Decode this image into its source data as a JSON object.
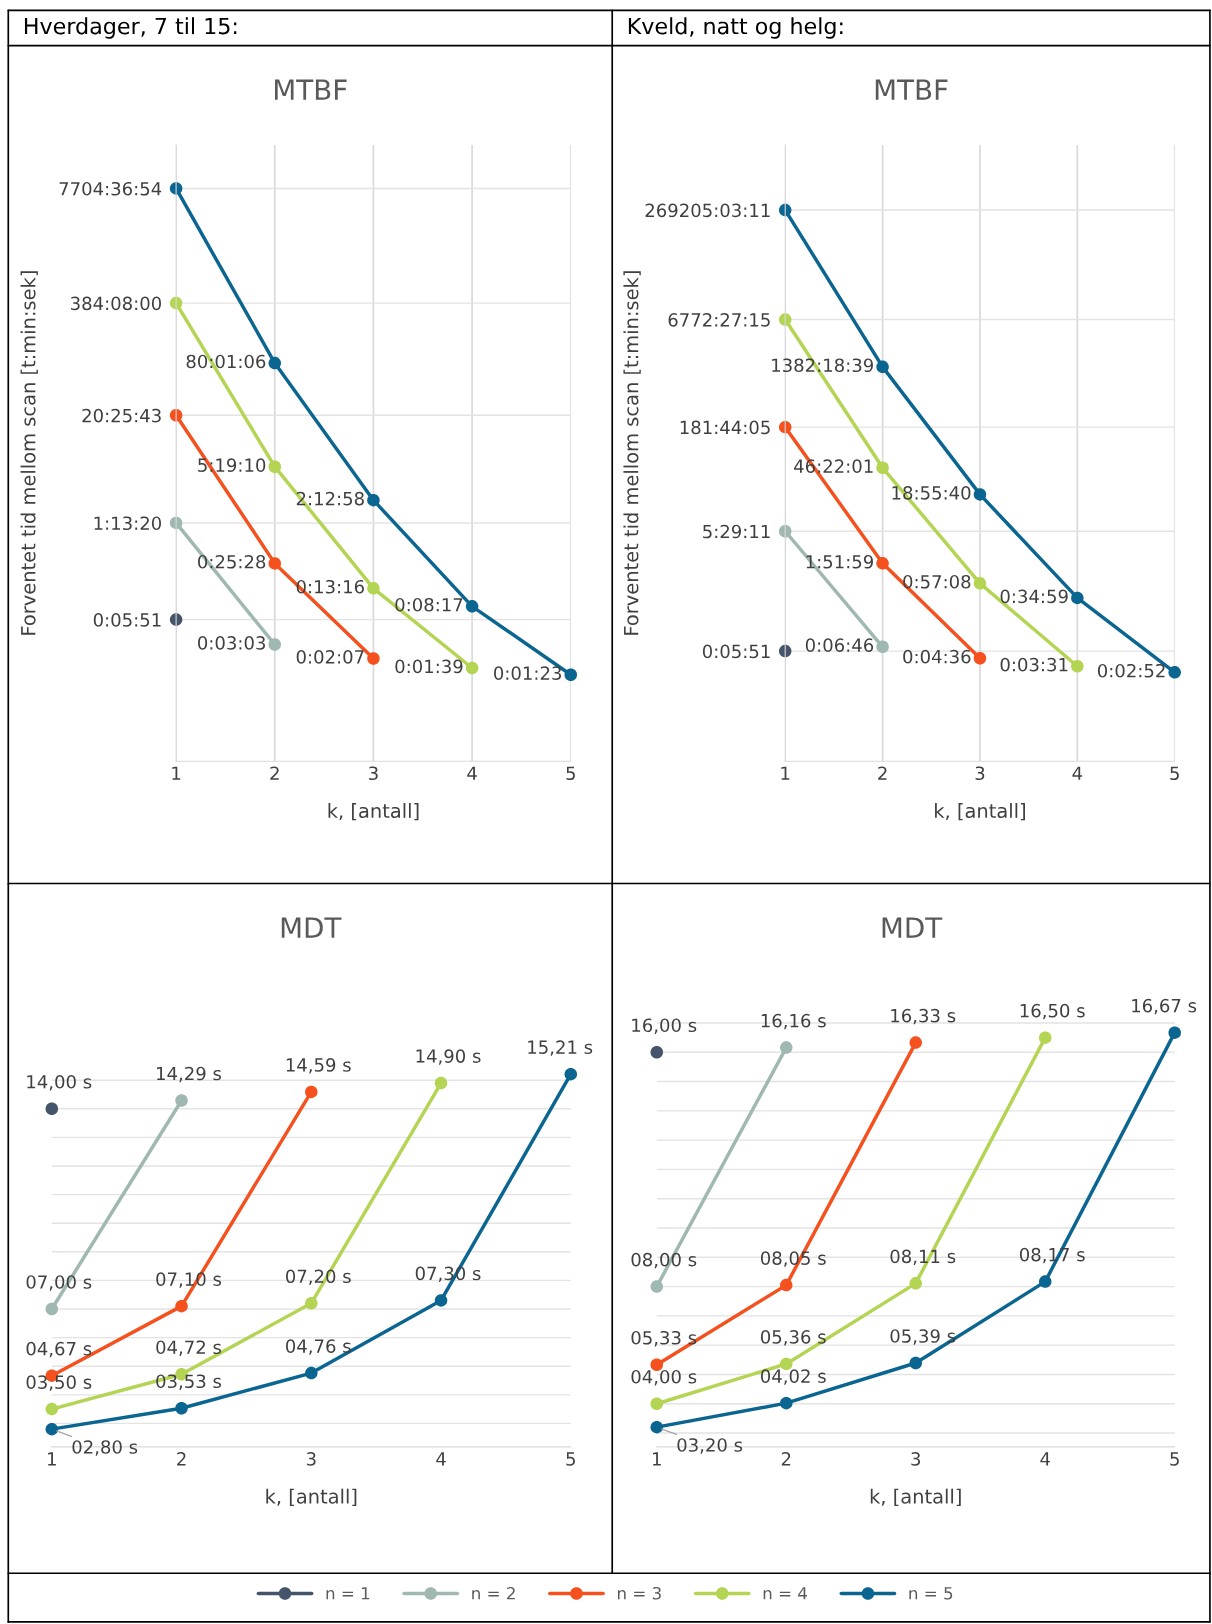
{
  "chart_data": [
    {
      "type": "line",
      "title": "MTBF",
      "xlabel": "k, [antall]",
      "ylabel": "Forventet tid mellom scan [t:min:sek]",
      "log": true,
      "xlim": [
        1,
        5
      ],
      "xticks": [
        1,
        2,
        3,
        4,
        5
      ],
      "ylim": [
        0.0024,
        24000
      ],
      "yticks": [
        {
          "value": 0.0975,
          "label": "0:05:51"
        },
        {
          "value": 1.222222,
          "label": "1:13:20"
        },
        {
          "value": 20.428611,
          "label": "20:25:43"
        },
        {
          "value": 384.133333,
          "label": "384:08:00"
        },
        {
          "value": 7704.615,
          "label": "7704:36:54"
        }
      ],
      "grid": true,
      "legend": "bottom",
      "marker": "circle",
      "annotations": [
        "Hverdager, 7 til 15:"
      ],
      "series": [
        {
          "name": "n = 1",
          "color": "#44546a",
          "x": [
            1
          ],
          "values": [
            0.0975
          ],
          "value_labels": [
            null
          ]
        },
        {
          "name": "n = 2",
          "color": "#a0b8b2",
          "x": [
            1,
            2
          ],
          "values": [
            1.222222,
            0.050833
          ],
          "value_labels": [
            null,
            "0:03:03"
          ]
        },
        {
          "name": "n = 3",
          "color": "#f4511e",
          "x": [
            1,
            2,
            3
          ],
          "values": [
            20.428611,
            0.424444,
            0.035278
          ],
          "value_labels": [
            null,
            "0:25:28",
            "0:02:07"
          ]
        },
        {
          "name": "n = 4",
          "color": "#b4d454",
          "x": [
            1,
            2,
            3,
            4
          ],
          "values": [
            384.133333,
            5.319444,
            0.221111,
            0.0275
          ],
          "value_labels": [
            null,
            "5:19:10",
            "0:13:16",
            "0:01:39"
          ]
        },
        {
          "name": "n = 5",
          "color": "#0b6591",
          "x": [
            1,
            2,
            3,
            4,
            5
          ],
          "values": [
            7704.615,
            80.018333,
            2.216111,
            0.138056,
            0.023056
          ],
          "value_labels": [
            null,
            "80:01:06",
            "2:12:58",
            "0:08:17",
            "0:01:23"
          ]
        }
      ]
    },
    {
      "type": "line",
      "title": "MTBF",
      "xlabel": "k, [antall]",
      "ylabel": "Forventet tid mellom scan [t:min:sek]",
      "log": true,
      "xlim": [
        1,
        5
      ],
      "xticks": [
        1,
        2,
        3,
        4,
        5
      ],
      "ylim": [
        0.0024,
        2400000
      ],
      "yticks": [
        {
          "value": 0.0975,
          "label": "0:05:51"
        },
        {
          "value": 5.486389,
          "label": "5:29:11"
        },
        {
          "value": 181.734722,
          "label": "181:44:05"
        },
        {
          "value": 6772.454167,
          "label": "6772:27:15"
        },
        {
          "value": 269205.053056,
          "label": "269205:03:11"
        }
      ],
      "grid": true,
      "legend": "bottom",
      "marker": "circle",
      "annotations": [
        "Kveld, natt og helg:"
      ],
      "series": [
        {
          "name": "n = 1",
          "color": "#44546a",
          "x": [
            1
          ],
          "values": [
            0.0975
          ],
          "value_labels": [
            null
          ]
        },
        {
          "name": "n = 2",
          "color": "#a0b8b2",
          "x": [
            1,
            2
          ],
          "values": [
            5.486389,
            0.112778
          ],
          "value_labels": [
            null,
            "0:06:46"
          ]
        },
        {
          "name": "n = 3",
          "color": "#f4511e",
          "x": [
            1,
            2,
            3
          ],
          "values": [
            181.734722,
            1.866389,
            0.076667
          ],
          "value_labels": [
            null,
            "1:51:59",
            "0:04:36"
          ]
        },
        {
          "name": "n = 4",
          "color": "#b4d454",
          "x": [
            1,
            2,
            3,
            4
          ],
          "values": [
            6772.454167,
            46.366944,
            0.952222,
            0.058611
          ],
          "value_labels": [
            null,
            "46:22:01",
            "0:57:08",
            "0:03:31"
          ]
        },
        {
          "name": "n = 5",
          "color": "#0b6591",
          "x": [
            1,
            2,
            3,
            4,
            5
          ],
          "values": [
            269205.053056,
            1382.310833,
            18.927778,
            0.583056,
            0.047778
          ],
          "value_labels": [
            null,
            "1382:18:39",
            "18:55:40",
            "0:34:59",
            "0:02:52"
          ]
        }
      ]
    },
    {
      "type": "line",
      "title": "MDT",
      "xlabel": "k, [antall]",
      "xlim": [
        1,
        5
      ],
      "xticks": [
        1,
        2,
        3,
        4,
        5
      ],
      "yticks": [
        {
          "value": 3,
          "label": null
        },
        {
          "value": 4,
          "label": null
        },
        {
          "value": 5,
          "label": null
        },
        {
          "value": 6,
          "label": null
        },
        {
          "value": 7,
          "label": null
        },
        {
          "value": 8,
          "label": null
        },
        {
          "value": 9,
          "label": null
        },
        {
          "value": 10,
          "label": null
        },
        {
          "value": 11,
          "label": null
        },
        {
          "value": 12,
          "label": null
        },
        {
          "value": 13,
          "label": null
        },
        {
          "value": 14,
          "label": null
        },
        {
          "value": 15,
          "label": null
        }
      ],
      "tick_labels": "x",
      "grid": "y",
      "legend": "bottom",
      "marker": "circle",
      "series": [
        {
          "name": "n = 1",
          "color": "#44546a",
          "x": [
            1
          ],
          "values": [
            14.0
          ],
          "value_labels": [
            "14,00 s"
          ]
        },
        {
          "name": "n = 2",
          "color": "#a0b8b2",
          "x": [
            1,
            2
          ],
          "values": [
            7.0,
            14.29
          ],
          "value_labels": [
            "07,00 s",
            "14,29 s"
          ]
        },
        {
          "name": "n = 3",
          "color": "#f4511e",
          "x": [
            1,
            2,
            3
          ],
          "values": [
            4.67,
            7.1,
            14.59
          ],
          "value_labels": [
            "04,67 s",
            "07,10 s",
            "14,59 s"
          ]
        },
        {
          "name": "n = 4",
          "color": "#b4d454",
          "x": [
            1,
            2,
            3,
            4
          ],
          "values": [
            3.5,
            4.72,
            7.2,
            14.9
          ],
          "value_labels": [
            "03,50 s",
            "04,72 s",
            "07,20 s",
            "14,90 s"
          ]
        },
        {
          "name": "n = 5",
          "color": "#0b6591",
          "x": [
            1,
            2,
            3,
            4,
            5
          ],
          "values": [
            2.8,
            3.53,
            4.76,
            7.3,
            15.21
          ],
          "value_labels": [
            "02,80 s",
            "03,53 s",
            "04,76 s",
            "07,30 s",
            "15,21 s"
          ]
        }
      ]
    },
    {
      "type": "line",
      "title": "MDT",
      "xlabel": "k, [antall]",
      "xlim": [
        1,
        5
      ],
      "xticks": [
        1,
        2,
        3,
        4,
        5
      ],
      "yticks": [
        {
          "value": 3,
          "label": null
        },
        {
          "value": 4,
          "label": null
        },
        {
          "value": 5,
          "label": null
        },
        {
          "value": 6,
          "label": null
        },
        {
          "value": 7,
          "label": null
        },
        {
          "value": 8,
          "label": null
        },
        {
          "value": 9,
          "label": null
        },
        {
          "value": 10,
          "label": null
        },
        {
          "value": 11,
          "label": null
        },
        {
          "value": 12,
          "label": null
        },
        {
          "value": 13,
          "label": null
        },
        {
          "value": 14,
          "label": null
        },
        {
          "value": 15,
          "label": null
        },
        {
          "value": 16,
          "label": null
        },
        {
          "value": 17,
          "label": null
        }
      ],
      "tick_labels": "x",
      "grid": "y",
      "legend": "bottom",
      "marker": "circle",
      "series": [
        {
          "name": "n = 1",
          "color": "#44546a",
          "x": [
            1
          ],
          "values": [
            16.0
          ],
          "value_labels": [
            "16,00 s"
          ]
        },
        {
          "name": "n = 2",
          "color": "#a0b8b2",
          "x": [
            1,
            2
          ],
          "values": [
            8.0,
            16.16
          ],
          "value_labels": [
            "08,00 s",
            "16,16 s"
          ]
        },
        {
          "name": "n = 3",
          "color": "#f4511e",
          "x": [
            1,
            2,
            3
          ],
          "values": [
            5.33,
            8.05,
            16.33
          ],
          "value_labels": [
            "05,33 s",
            "08,05 s",
            "16,33 s"
          ]
        },
        {
          "name": "n = 4",
          "color": "#b4d454",
          "x": [
            1,
            2,
            3,
            4
          ],
          "values": [
            4.0,
            5.36,
            8.11,
            16.5
          ],
          "value_labels": [
            "04,00 s",
            "05,36 s",
            "08,11 s",
            "16,50 s"
          ]
        },
        {
          "name": "n = 5",
          "color": "#0b6591",
          "x": [
            1,
            2,
            3,
            4,
            5
          ],
          "values": [
            3.2,
            4.02,
            5.39,
            8.17,
            16.67
          ],
          "value_labels": [
            "03,20 s",
            "04,02 s",
            "05,39 s",
            "08,17 s",
            "16,67 s"
          ]
        }
      ]
    }
  ]
}
